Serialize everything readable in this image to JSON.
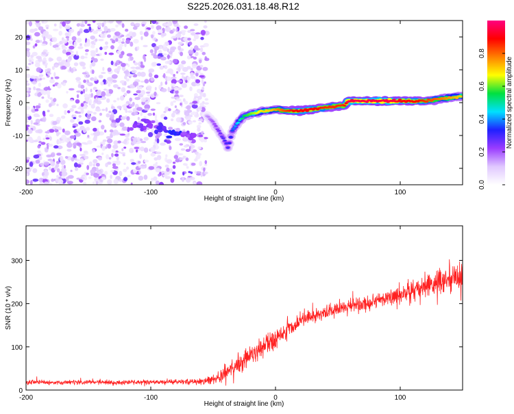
{
  "page_title": "S225.2026.031.18.48.R12",
  "chart_data": [
    {
      "type": "heatmap",
      "title": "S225.2026.031.18.48.R12",
      "xlabel": "Height of straight line (km)",
      "ylabel": "Frequency (Hz)",
      "xlim": [
        -200,
        150
      ],
      "ylim": [
        -25,
        25
      ],
      "xticks": [
        -200,
        -100,
        0,
        100
      ],
      "xtick_labels": [
        "-200",
        "-100",
        "0",
        "100"
      ],
      "yticks": [
        -20,
        -10,
        0,
        10,
        20
      ],
      "ytick_labels": [
        "-20",
        "-10",
        "0",
        "10",
        "20"
      ],
      "colorbar": {
        "label": "Normalized spectral amplitude",
        "range": [
          0,
          1
        ],
        "ticks": [
          0.0,
          0.2,
          0.4,
          0.6,
          0.8
        ],
        "tick_labels": [
          "0.0",
          "0.2",
          "0.4",
          "0.6",
          "0.8"
        ],
        "colormap": [
          "#ffffff",
          "#e0c8ff",
          "#9a3cff",
          "#2020ff",
          "#00e0ff",
          "#00e040",
          "#ffff00",
          "#ff8000",
          "#ff0000",
          "#ff0080"
        ]
      },
      "noise_region": {
        "x_range": [
          -200,
          -55
        ],
        "y_range": [
          -25,
          25
        ],
        "typical_amplitude": 0.08
      },
      "signal_trace": {
        "x": [
          -55,
          -50,
          -45,
          -40,
          -38,
          -35,
          -30,
          -25,
          -20,
          -15,
          -10,
          -5,
          0,
          10,
          20,
          30,
          40,
          50,
          55,
          58,
          70,
          80,
          90,
          95,
          100,
          110,
          120,
          130,
          140,
          150
        ],
        "y": [
          -4,
          -6,
          -9,
          -12,
          -14,
          -9,
          -6,
          -4,
          -3.5,
          -3,
          -2.5,
          -2.5,
          -2,
          -2.5,
          -2.5,
          -2,
          -1.5,
          -1,
          -1,
          0.5,
          0.5,
          0.5,
          0.5,
          0.5,
          0.5,
          0.5,
          0.5,
          1,
          1.5,
          2
        ],
        "amplitude": [
          0.15,
          0.2,
          0.25,
          0.3,
          0.3,
          0.35,
          0.45,
          0.55,
          0.6,
          0.65,
          0.7,
          0.7,
          0.75,
          0.85,
          0.9,
          0.9,
          0.85,
          0.85,
          0.85,
          0.95,
          0.95,
          0.95,
          0.95,
          0.95,
          0.9,
          0.9,
          0.85,
          0.8,
          0.75,
          0.7
        ]
      },
      "low_band_blob": {
        "x": [
          -110,
          -100,
          -90,
          -80,
          -70
        ],
        "y": [
          -7,
          -7,
          -8,
          -9,
          -10
        ],
        "amplitude": [
          0.2,
          0.2,
          0.25,
          0.3,
          0.2
        ]
      }
    },
    {
      "type": "line",
      "title": "",
      "xlabel": "Height of straight line (km)",
      "ylabel": "SNR (10 * v/v)",
      "xlim": [
        -200,
        150
      ],
      "ylim": [
        0,
        380
      ],
      "xticks": [
        -200,
        -100,
        0,
        100
      ],
      "xtick_labels": [
        "-200",
        "-100",
        "0",
        "100"
      ],
      "yticks": [
        0,
        100,
        200,
        300
      ],
      "ytick_labels": [
        "0",
        "100",
        "200",
        "300"
      ],
      "color": "#ff2020",
      "series": [
        {
          "name": "SNR",
          "envelope_x": [
            -200,
            -150,
            -100,
            -60,
            -50,
            -40,
            -30,
            -20,
            -10,
            0,
            10,
            20,
            40,
            60,
            80,
            100,
            120,
            140,
            150
          ],
          "envelope_mean": [
            18,
            18,
            18,
            20,
            25,
            40,
            55,
            80,
            100,
            120,
            140,
            160,
            180,
            195,
            205,
            220,
            240,
            255,
            260
          ],
          "envelope_spread": [
            10,
            10,
            10,
            12,
            20,
            45,
            50,
            50,
            45,
            40,
            40,
            35,
            30,
            30,
            35,
            45,
            60,
            70,
            70
          ]
        }
      ]
    }
  ]
}
